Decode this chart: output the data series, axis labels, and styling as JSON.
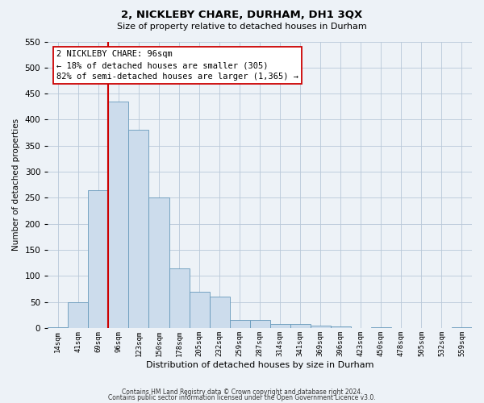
{
  "title": "2, NICKLEBY CHARE, DURHAM, DH1 3QX",
  "subtitle": "Size of property relative to detached houses in Durham",
  "xlabel": "Distribution of detached houses by size in Durham",
  "ylabel": "Number of detached properties",
  "bar_color": "#ccdcec",
  "bar_edge_color": "#6699bb",
  "bin_labels": [
    "14sqm",
    "41sqm",
    "69sqm",
    "96sqm",
    "123sqm",
    "150sqm",
    "178sqm",
    "205sqm",
    "232sqm",
    "259sqm",
    "287sqm",
    "314sqm",
    "341sqm",
    "369sqm",
    "396sqm",
    "423sqm",
    "450sqm",
    "478sqm",
    "505sqm",
    "532sqm",
    "559sqm"
  ],
  "bar_heights": [
    2,
    50,
    265,
    435,
    380,
    250,
    115,
    70,
    60,
    15,
    15,
    8,
    7,
    5,
    3,
    0,
    2,
    0,
    0,
    0,
    2
  ],
  "ylim": [
    0,
    550
  ],
  "yticks": [
    0,
    50,
    100,
    150,
    200,
    250,
    300,
    350,
    400,
    450,
    500,
    550
  ],
  "vline_color": "#cc0000",
  "annotation_title": "2 NICKLEBY CHARE: 96sqm",
  "annotation_line1": "← 18% of detached houses are smaller (305)",
  "annotation_line2": "82% of semi-detached houses are larger (1,365) →",
  "annotation_box_facecolor": "#ffffff",
  "annotation_box_edge_color": "#cc0000",
  "footer_line1": "Contains HM Land Registry data © Crown copyright and database right 2024.",
  "footer_line2": "Contains public sector information licensed under the Open Government Licence v3.0.",
  "background_color": "#edf2f7",
  "plot_bg_color": "#edf2f7",
  "grid_color": "#b8c8d8"
}
